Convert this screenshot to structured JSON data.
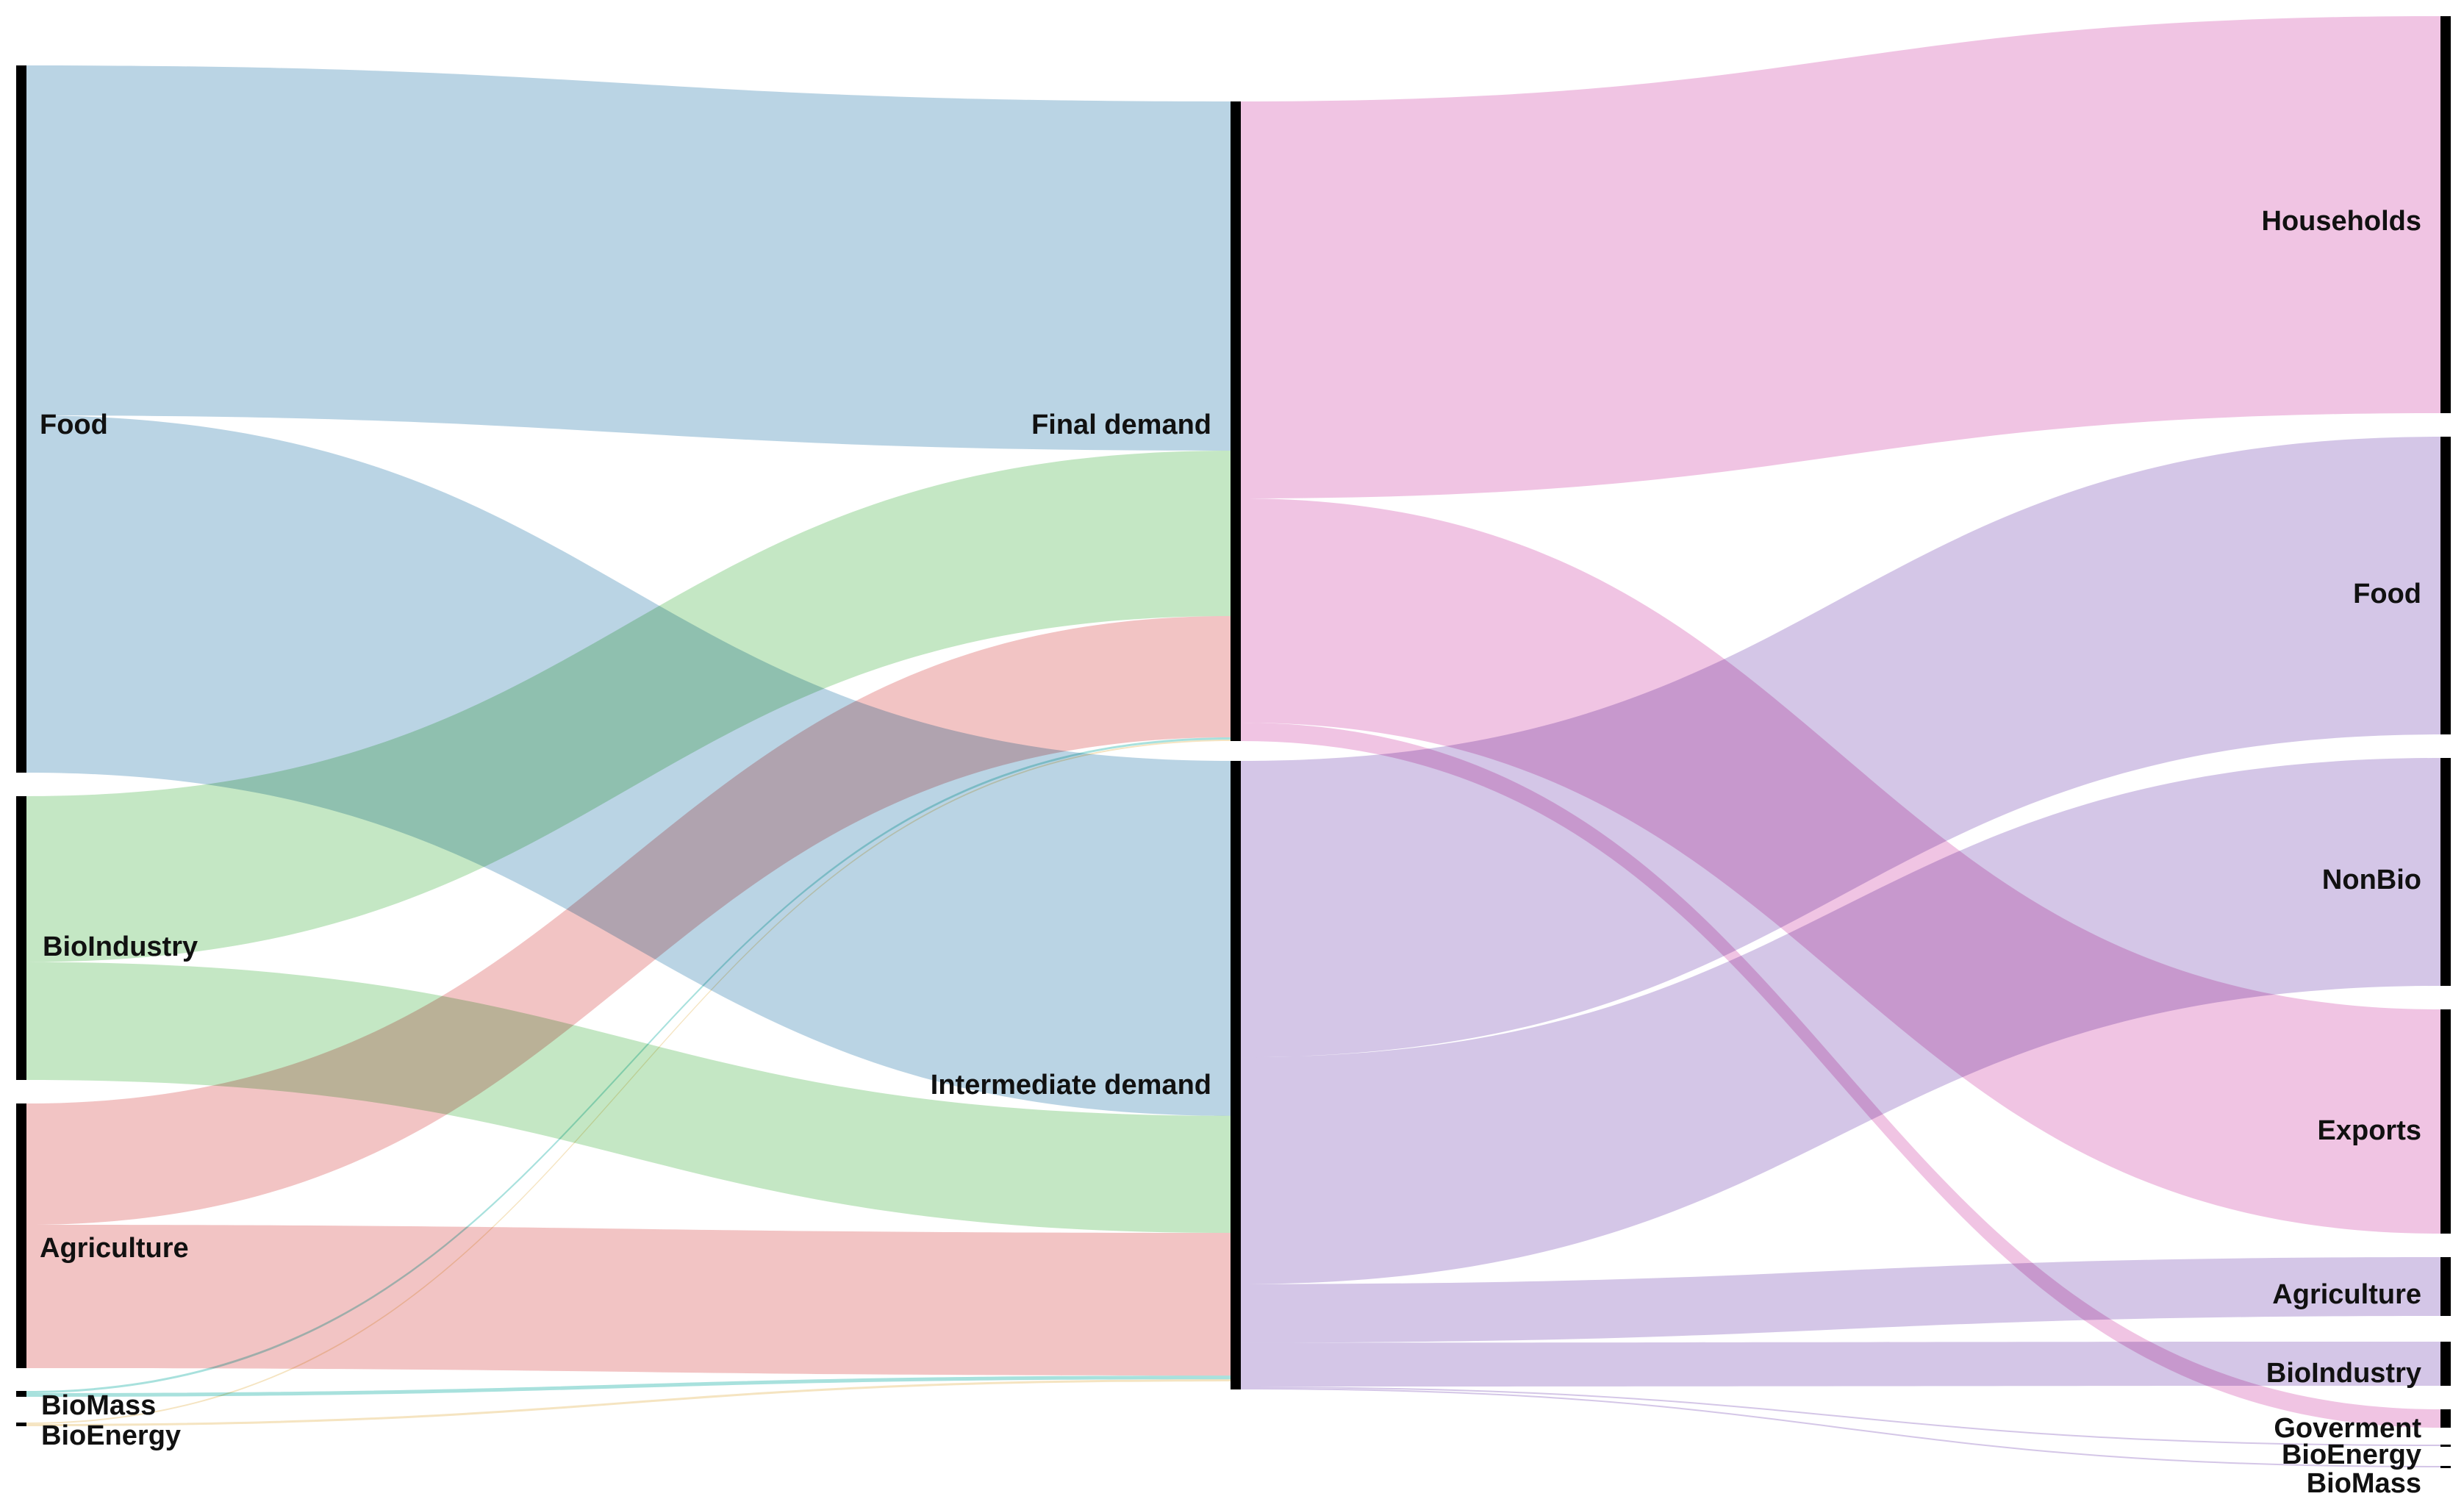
{
  "colors": {
    "Food": "#a6c8dc",
    "BioIndustry": "#b3e0b3",
    "Agriculture": "#eeb4b4",
    "BioMass": "#8fd8d4",
    "BioEnergy": "#f2ddb0",
    "Final demand": "#ecb4db",
    "Intermediate demand": "#c8b6e0"
  },
  "nodes": [
    {
      "id": "src-food",
      "label": "Food"
    },
    {
      "id": "src-bioindustry",
      "label": "BioIndustry"
    },
    {
      "id": "src-agriculture",
      "label": "Agriculture"
    },
    {
      "id": "src-biomass",
      "label": "BioMass"
    },
    {
      "id": "src-bioenergy",
      "label": "BioEnergy"
    },
    {
      "id": "mid-final",
      "label": "Final demand"
    },
    {
      "id": "mid-intermediate",
      "label": "Intermediate demand"
    },
    {
      "id": "dst-households",
      "label": "Households"
    },
    {
      "id": "dst-food",
      "label": "Food"
    },
    {
      "id": "dst-nonbio",
      "label": "NonBio"
    },
    {
      "id": "dst-exports",
      "label": "Exports"
    },
    {
      "id": "dst-agriculture",
      "label": "Agriculture"
    },
    {
      "id": "dst-bioindustry",
      "label": "BioIndustry"
    },
    {
      "id": "dst-goverment",
      "label": "Goverment"
    },
    {
      "id": "dst-bioenergy",
      "label": "BioEnergy"
    },
    {
      "id": "dst-biomass",
      "label": "BioMass"
    }
  ],
  "links": [
    {
      "source": "src-food",
      "target": "mid-final",
      "value": 475,
      "color_key": "Food"
    },
    {
      "source": "src-food",
      "target": "mid-intermediate",
      "value": 485,
      "color_key": "Food"
    },
    {
      "source": "src-bioindustry",
      "target": "mid-final",
      "value": 225,
      "color_key": "BioIndustry"
    },
    {
      "source": "src-bioindustry",
      "target": "mid-intermediate",
      "value": 160,
      "color_key": "BioIndustry"
    },
    {
      "source": "src-agriculture",
      "target": "mid-final",
      "value": 165,
      "color_key": "Agriculture"
    },
    {
      "source": "src-agriculture",
      "target": "mid-intermediate",
      "value": 195,
      "color_key": "Agriculture"
    },
    {
      "source": "src-biomass",
      "target": "mid-final",
      "value": 3,
      "color_key": "BioMass"
    },
    {
      "source": "src-biomass",
      "target": "mid-intermediate",
      "value": 5,
      "color_key": "BioMass"
    },
    {
      "source": "src-bioenergy",
      "target": "mid-final",
      "value": 2,
      "color_key": "BioEnergy"
    },
    {
      "source": "src-bioenergy",
      "target": "mid-intermediate",
      "value": 3,
      "color_key": "BioEnergy"
    },
    {
      "source": "mid-final",
      "target": "dst-households",
      "value": 540,
      "color_key": "Final demand"
    },
    {
      "source": "mid-final",
      "target": "dst-exports",
      "value": 305,
      "color_key": "Final demand"
    },
    {
      "source": "mid-final",
      "target": "dst-goverment",
      "value": 25,
      "color_key": "Final demand"
    },
    {
      "source": "mid-intermediate",
      "target": "dst-food",
      "value": 405,
      "color_key": "Intermediate demand"
    },
    {
      "source": "mid-intermediate",
      "target": "dst-nonbio",
      "value": 310,
      "color_key": "Intermediate demand"
    },
    {
      "source": "mid-intermediate",
      "target": "dst-agriculture",
      "value": 80,
      "color_key": "Intermediate demand"
    },
    {
      "source": "mid-intermediate",
      "target": "dst-bioindustry",
      "value": 60,
      "color_key": "Intermediate demand"
    },
    {
      "source": "mid-intermediate",
      "target": "dst-bioenergy",
      "value": 2,
      "color_key": "Intermediate demand"
    },
    {
      "source": "mid-intermediate",
      "target": "dst-biomass",
      "value": 2,
      "color_key": "Intermediate demand"
    }
  ]
}
